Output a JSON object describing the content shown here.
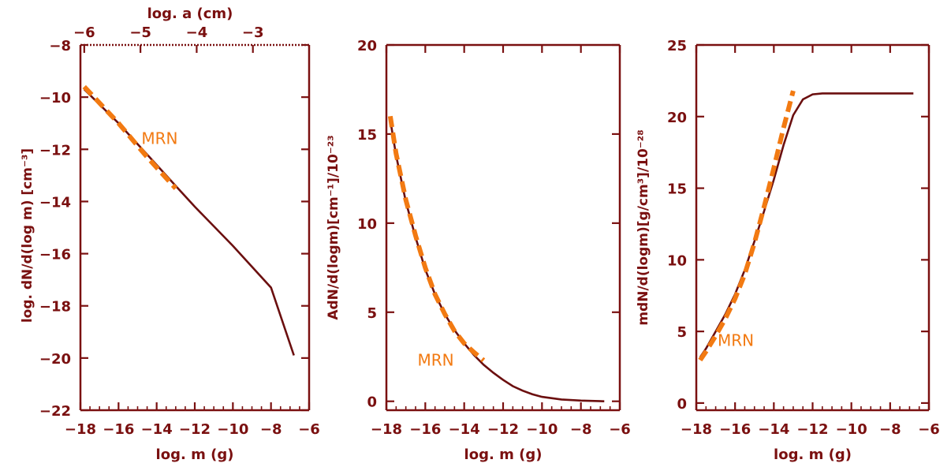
{
  "colors": {
    "axis": "#7a1010",
    "curve": "#6b0f0f",
    "mrn": "#f27a12",
    "background": "#ffffff"
  },
  "chart_data": [
    {
      "type": "line",
      "xlabel": "log. m (g)",
      "ylabel": "log. dN/d(log m) [cm⁻³]",
      "xlim": [
        -18,
        -6
      ],
      "ylim": [
        -22,
        -8
      ],
      "xticks": [
        -18,
        -16,
        -14,
        -12,
        -10,
        -8,
        -6
      ],
      "yticks": [
        -22,
        -20,
        -18,
        -16,
        -14,
        -12,
        -10,
        -8
      ],
      "top_axis": {
        "label": "log. a (cm)",
        "ticks": [
          {
            "label": "−6",
            "x": -17.8
          },
          {
            "label": "−5",
            "x": -14.85
          },
          {
            "label": "−4",
            "x": -11.9
          },
          {
            "label": "−3",
            "x": -8.95
          }
        ]
      },
      "annotation": {
        "text": "MRN",
        "x": -14.8,
        "y": -11.8
      },
      "series": [
        {
          "style": "solid",
          "points": [
            [
              -17.8,
              -9.7
            ],
            [
              -16,
              -11.0
            ],
            [
              -14,
              -12.6
            ],
            [
              -13,
              -13.4
            ],
            [
              -12,
              -14.2
            ],
            [
              -10,
              -15.7
            ],
            [
              -8,
              -17.3
            ],
            [
              -6.8,
              -19.9
            ]
          ]
        },
        {
          "style": "dashed",
          "points": [
            [
              -17.8,
              -9.6
            ],
            [
              -16,
              -11.0
            ],
            [
              -14.5,
              -12.3
            ],
            [
              -13,
              -13.5
            ]
          ]
        }
      ]
    },
    {
      "type": "line",
      "xlabel": "log. m (g)",
      "ylabel": "AdN/d(logm)[cm⁻¹]/10⁻²³",
      "xlim": [
        -18,
        -6
      ],
      "ylim": [
        -0.5,
        20
      ],
      "xticks": [
        -18,
        -16,
        -14,
        -12,
        -10,
        -8,
        -6
      ],
      "yticks": [
        0,
        5,
        10,
        15,
        20
      ],
      "annotation": {
        "text": "MRN",
        "x": -16.4,
        "y": 2.0
      },
      "series": [
        {
          "style": "solid",
          "points": [
            [
              -17.8,
              15.8
            ],
            [
              -17.5,
              13.8
            ],
            [
              -17,
              11.2
            ],
            [
              -16.5,
              9.2
            ],
            [
              -16,
              7.4
            ],
            [
              -15.5,
              6.0
            ],
            [
              -15,
              4.9
            ],
            [
              -14.5,
              4.0
            ],
            [
              -14,
              3.25
            ],
            [
              -13.5,
              2.6
            ],
            [
              -13,
              2.05
            ],
            [
              -12.5,
              1.6
            ],
            [
              -12,
              1.2
            ],
            [
              -11.5,
              0.85
            ],
            [
              -11,
              0.6
            ],
            [
              -10.5,
              0.4
            ],
            [
              -10,
              0.25
            ],
            [
              -9,
              0.1
            ],
            [
              -8,
              0.04
            ],
            [
              -6.8,
              0.0
            ]
          ]
        },
        {
          "style": "dashed",
          "points": [
            [
              -17.8,
              16.0
            ],
            [
              -17.5,
              13.9
            ],
            [
              -17,
              11.3
            ],
            [
              -16.5,
              9.3
            ],
            [
              -16,
              7.5
            ],
            [
              -15.5,
              6.0
            ],
            [
              -15,
              4.9
            ],
            [
              -14.5,
              3.95
            ],
            [
              -14,
              3.25
            ],
            [
              -13.5,
              2.75
            ],
            [
              -13,
              2.3
            ]
          ]
        }
      ]
    },
    {
      "type": "line",
      "xlabel": "log. m (g)",
      "ylabel": "mdN/d(logm)[g/cm³]/10⁻²⁸",
      "xlim": [
        -18,
        -6
      ],
      "ylim": [
        -0.5,
        25
      ],
      "xticks": [
        -18,
        -16,
        -14,
        -12,
        -10,
        -8,
        -6
      ],
      "yticks": [
        0,
        5,
        10,
        15,
        20,
        25
      ],
      "annotation": {
        "text": "MRN",
        "x": -16.9,
        "y": 4.0
      },
      "series": [
        {
          "style": "solid",
          "points": [
            [
              -17.8,
              3.2
            ],
            [
              -17.5,
              3.8
            ],
            [
              -17,
              5.0
            ],
            [
              -16.5,
              6.2
            ],
            [
              -16,
              7.6
            ],
            [
              -15.5,
              9.3
            ],
            [
              -15,
              11.3
            ],
            [
              -14.5,
              13.4
            ],
            [
              -14,
              15.6
            ],
            [
              -13.5,
              18.0
            ],
            [
              -13,
              20.1
            ],
            [
              -12.5,
              21.2
            ],
            [
              -12,
              21.55
            ],
            [
              -11.5,
              21.62
            ],
            [
              -11,
              21.62
            ],
            [
              -10,
              21.62
            ],
            [
              -8,
              21.62
            ],
            [
              -6.8,
              21.62
            ]
          ]
        },
        {
          "style": "dashed",
          "points": [
            [
              -17.8,
              3.0
            ],
            [
              -17.5,
              3.6
            ],
            [
              -17,
              4.7
            ],
            [
              -16.5,
              5.9
            ],
            [
              -16,
              7.3
            ],
            [
              -15.5,
              9.0
            ],
            [
              -15,
              11.2
            ],
            [
              -14.5,
              13.7
            ],
            [
              -14,
              16.4
            ],
            [
              -13.5,
              19.2
            ],
            [
              -13,
              21.8
            ]
          ]
        }
      ]
    }
  ]
}
